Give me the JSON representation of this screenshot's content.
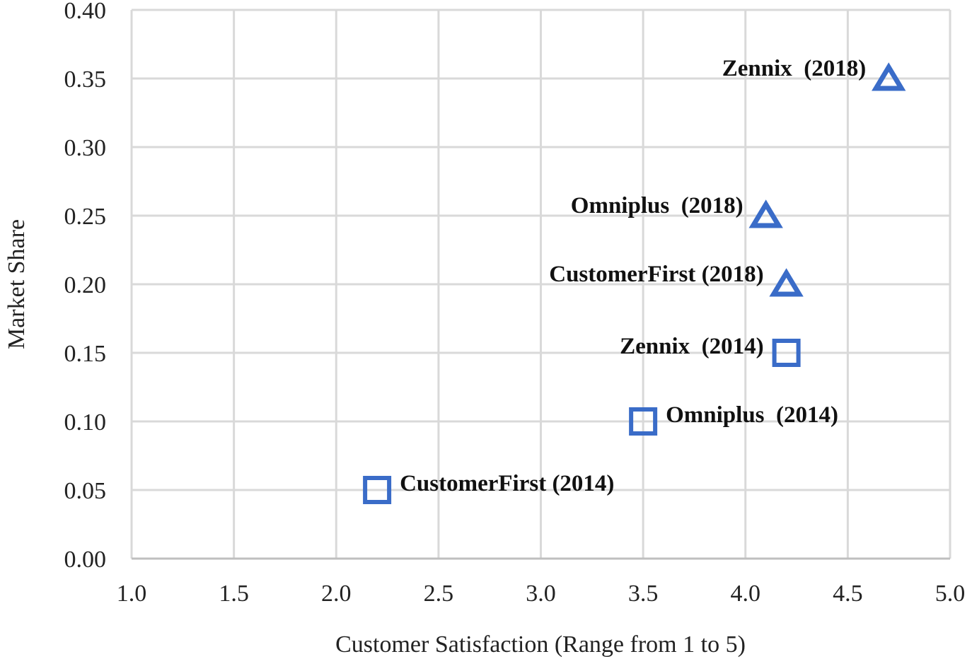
{
  "chart_data": {
    "type": "scatter",
    "title": "",
    "xlabel": "Customer Satisfaction (Range from 1 to 5)",
    "ylabel": "Market Share",
    "xlim": [
      1.0,
      5.0
    ],
    "ylim": [
      0.0,
      0.4
    ],
    "x_ticks": [
      "1.0",
      "1.5",
      "2.0",
      "2.5",
      "3.0",
      "3.5",
      "4.0",
      "4.5",
      "5.0"
    ],
    "y_ticks": [
      "0.00",
      "0.05",
      "0.10",
      "0.15",
      "0.20",
      "0.25",
      "0.30",
      "0.35",
      "0.40"
    ],
    "grid": true,
    "marker_color": "#3a6cc8",
    "points": [
      {
        "label": "CustomerFirst (2014)",
        "x": 2.2,
        "y": 0.05,
        "marker": "square",
        "label_side": "right"
      },
      {
        "label": "Omniplus  (2014)",
        "x": 3.5,
        "y": 0.1,
        "marker": "square",
        "label_side": "right"
      },
      {
        "label": "Zennix  (2014)",
        "x": 4.2,
        "y": 0.15,
        "marker": "square",
        "label_side": "left"
      },
      {
        "label": "CustomerFirst (2018)",
        "x": 4.2,
        "y": 0.2,
        "marker": "triangle",
        "label_side": "left"
      },
      {
        "label": "Omniplus  (2018)",
        "x": 4.1,
        "y": 0.25,
        "marker": "triangle",
        "label_side": "left"
      },
      {
        "label": "Zennix  (2018)",
        "x": 4.7,
        "y": 0.35,
        "marker": "triangle",
        "label_side": "left"
      }
    ]
  }
}
